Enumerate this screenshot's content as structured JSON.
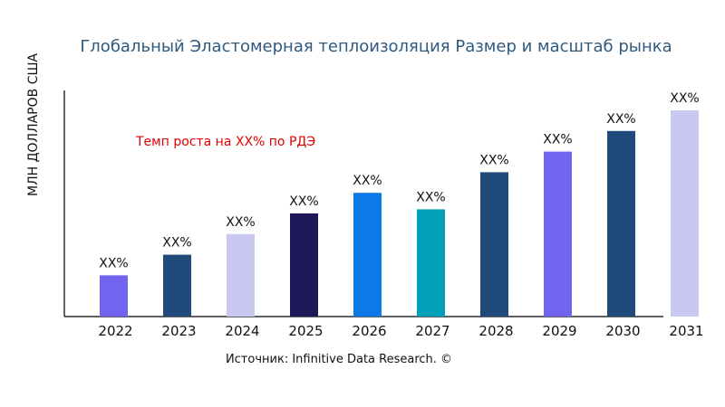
{
  "chart_data": {
    "type": "bar",
    "title": "Глобальный Эластомерная теплоизоляция Размер и масштаб рынка",
    "ylabel": "МЛН ДОЛЛАРОВ США",
    "xlabel": "",
    "annotation": "Темп роста на XX% по РДЭ",
    "source": "Источник: Infinitive Data Research. ©",
    "categories": [
      "2022",
      "2023",
      "2024",
      "2025",
      "2026",
      "2027",
      "2028",
      "2029",
      "2030",
      "2031"
    ],
    "values": [
      20,
      30,
      40,
      50,
      60,
      52,
      70,
      80,
      90,
      100
    ],
    "data_labels": [
      "XX%",
      "XX%",
      "XX%",
      "XX%",
      "XX%",
      "XX%",
      "XX%",
      "XX%",
      "XX%",
      "XX%"
    ],
    "colors": [
      "#7165F0",
      "#1F4A7A",
      "#C8C8F0",
      "#1E1858",
      "#0C7AE6",
      "#00A0B8",
      "#1F4A7A",
      "#7165F0",
      "#1F4A7A",
      "#C8C8F0"
    ],
    "ylim": [
      0,
      100
    ],
    "grid": false,
    "title_color": "#2E5A80",
    "annotation_color": "#E00000"
  }
}
